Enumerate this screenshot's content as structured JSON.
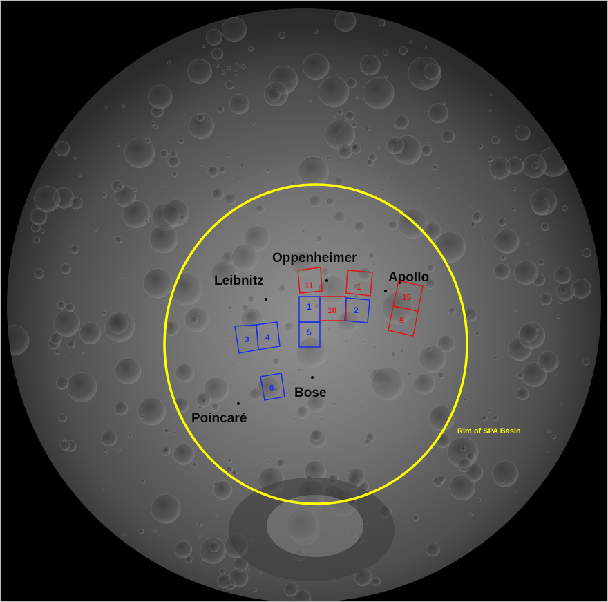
{
  "map": {
    "rim_label": "Rim of SPA Basin",
    "rim_color": "#ffff00",
    "craters": [
      {
        "name": "Oppenheimer"
      },
      {
        "name": "Apollo"
      },
      {
        "name": "Leibnitz"
      },
      {
        "name": "Bose"
      },
      {
        "name": "Poincaré"
      }
    ],
    "regions_red": [
      "11",
      "1",
      "10",
      "15",
      "5"
    ],
    "regions_blue": [
      "1",
      "2",
      "5",
      "3",
      "4",
      "6"
    ],
    "colors": {
      "red_region": "#e01616",
      "blue_region": "#1c2fe8",
      "label_text": "#0b0b0b"
    }
  }
}
